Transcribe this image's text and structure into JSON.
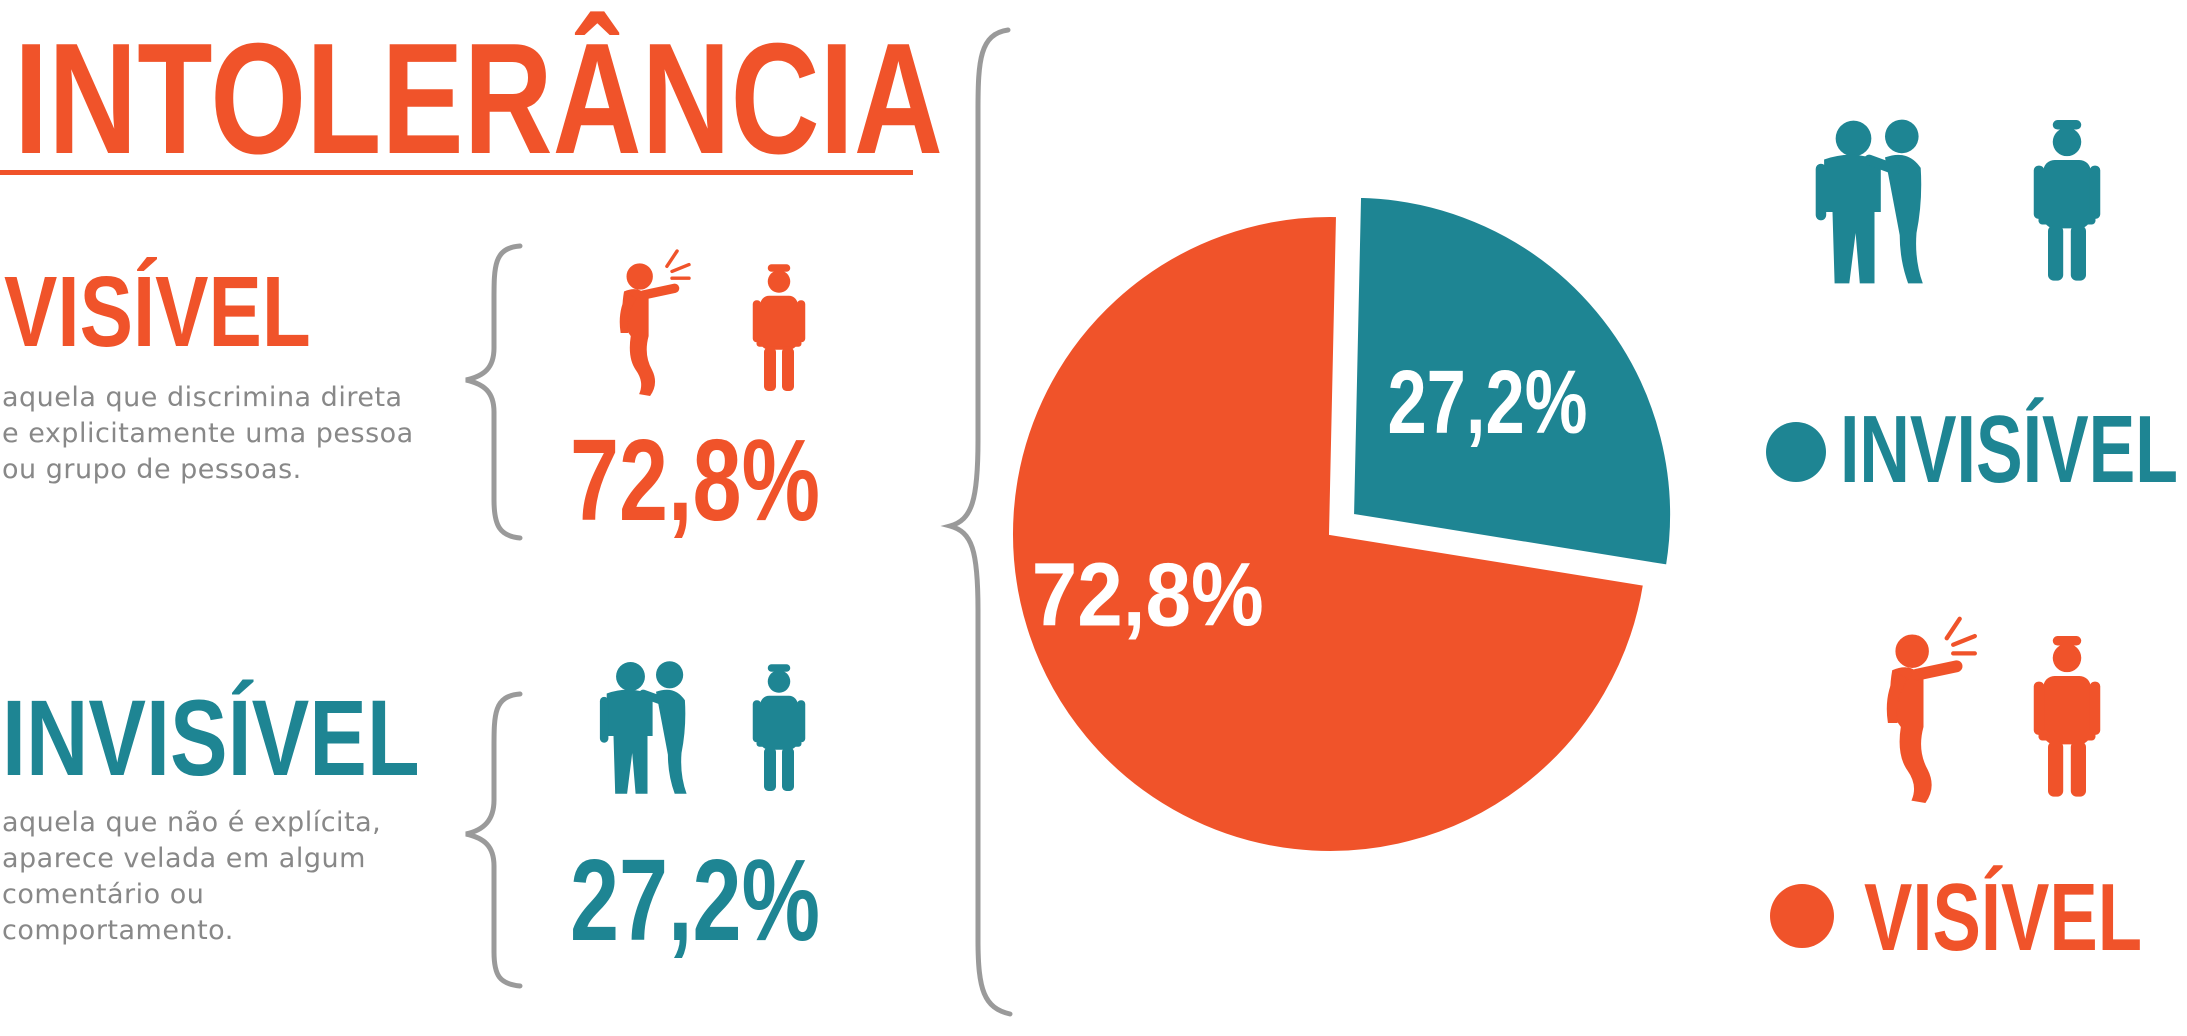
{
  "title": "INTOLERÂNCIA",
  "colors": {
    "visible": "#f0532a",
    "invisible": "#1e8593",
    "brace": "#9a9a9a",
    "description": "#888888"
  },
  "sections": {
    "visible": {
      "heading": "VISÍVEL",
      "description_lines": [
        "aquela que discrimina direta",
        "e explicitamente uma pessoa",
        "ou grupo de pessoas."
      ],
      "percent": "72,8%",
      "icons": [
        "shouting-person-icon",
        "standing-person-icon"
      ]
    },
    "invisible": {
      "heading": "INVISÍVEL",
      "description_lines": [
        "aquela que não é explícita,",
        "aparece velada em algum",
        "comentário ou",
        "comportamento."
      ],
      "percent": "27,2%",
      "icons": [
        "whispering-people-icon",
        "standing-person-icon"
      ]
    }
  },
  "chart_data": {
    "type": "pie",
    "slices": [
      {
        "label": "INVISÍVEL",
        "value": 27.2,
        "display": "27,2%",
        "color": "#1e8593",
        "exploded": true
      },
      {
        "label": "VISÍVEL",
        "value": 72.8,
        "display": "72,8%",
        "color": "#f0532a",
        "exploded": false
      }
    ],
    "legend": {
      "placement": "right",
      "entries": [
        {
          "label": "INVISÍVEL",
          "color": "#1e8593"
        },
        {
          "label": "VISÍVEL",
          "color": "#f0532a"
        }
      ]
    }
  }
}
